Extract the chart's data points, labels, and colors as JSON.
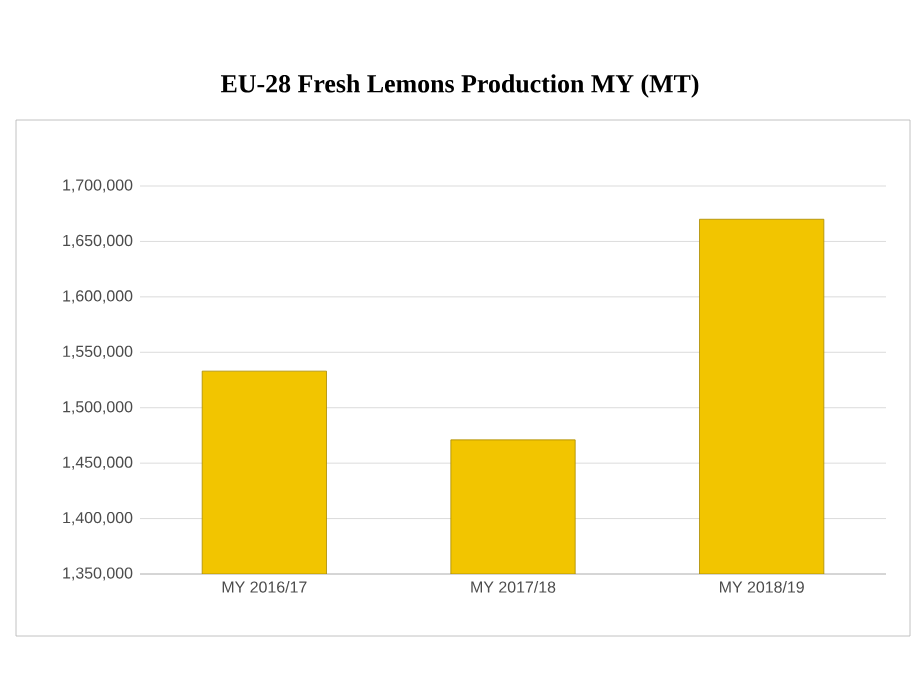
{
  "chart_data": {
    "type": "bar",
    "title": "EU-28 Fresh Lemons Production MY (MT)",
    "categories": [
      "MY 2016/17",
      "MY 2017/18",
      "MY 2018/19"
    ],
    "values": [
      1533000,
      1471000,
      1670000
    ],
    "color": "#f2c500",
    "ylim": [
      1350000,
      1700000
    ],
    "yticks": [
      {
        "value": 1350000,
        "label": "1,350,000"
      },
      {
        "value": 1400000,
        "label": "1,400,000"
      },
      {
        "value": 1450000,
        "label": "1,450,000"
      },
      {
        "value": 1500000,
        "label": "1,500,000"
      },
      {
        "value": 1550000,
        "label": "1,550,000"
      },
      {
        "value": 1600000,
        "label": "1,600,000"
      },
      {
        "value": 1650000,
        "label": "1,650,000"
      },
      {
        "value": 1700000,
        "label": "1,700,000"
      }
    ],
    "grid": "y"
  }
}
